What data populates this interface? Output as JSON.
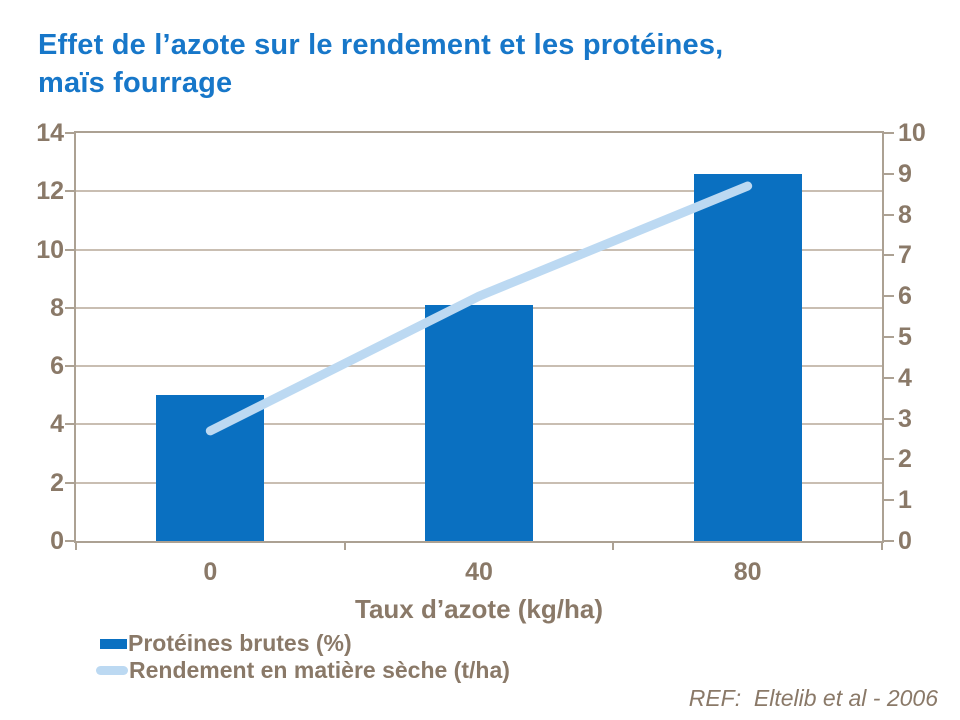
{
  "title": "Effet de l’azote sur le rendement et les protéines,\nmaïs fourrage",
  "colors": {
    "title": "#1777C9",
    "bar": "#0A70C1",
    "line": "#BCD9F2",
    "text": "#8A7968",
    "grid": "#C9BEB2",
    "border": "#ACA193"
  },
  "chart_data": {
    "type": "combo",
    "categories": [
      "0",
      "40",
      "80"
    ],
    "series": [
      {
        "name": "Protéines brutes (%)",
        "type": "bar",
        "axis": "left",
        "values": [
          5.0,
          8.1,
          12.6
        ]
      },
      {
        "name": "Rendement en matière sèche (t/ha)",
        "type": "line",
        "axis": "right",
        "values": [
          2.7,
          6.0,
          8.7
        ]
      }
    ],
    "xlabel": "Taux d’azote (kg/ha)",
    "left_axis": {
      "min": 0,
      "max": 14,
      "step": 2,
      "ticks": [
        "0",
        "2",
        "4",
        "6",
        "8",
        "10",
        "12",
        "14"
      ]
    },
    "right_axis": {
      "min": 0,
      "max": 10,
      "step": 1,
      "ticks": [
        "0",
        "1",
        "2",
        "3",
        "4",
        "5",
        "6",
        "7",
        "8",
        "9",
        "10"
      ]
    },
    "grid": true,
    "legend_position": "bottom-left"
  },
  "footer": {
    "ref": "REF:  Eltelib et al - 2006"
  }
}
